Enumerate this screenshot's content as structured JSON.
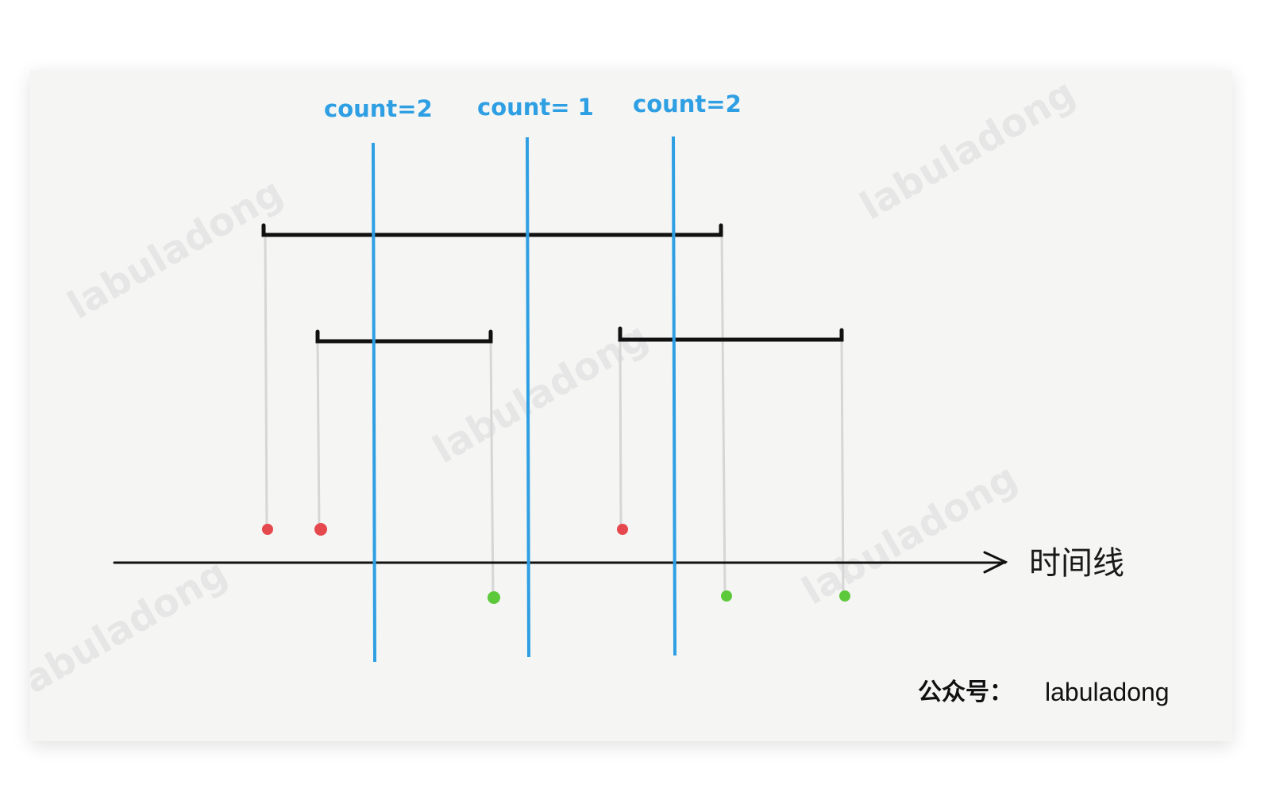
{
  "diagram": {
    "count_labels": [
      "count=2",
      "count= 1",
      "count=2"
    ],
    "axis_label": "时间线",
    "watermark_text": "labuladong",
    "credit": {
      "prefix": "公众号：",
      "handle": "labuladong"
    },
    "colors": {
      "count_line": "#2e9fe3",
      "interval": "#111111",
      "stem": "#d6d6d6",
      "start_dot": "#e5484d",
      "end_dot": "#5cc93a",
      "axis": "#111111"
    }
  }
}
